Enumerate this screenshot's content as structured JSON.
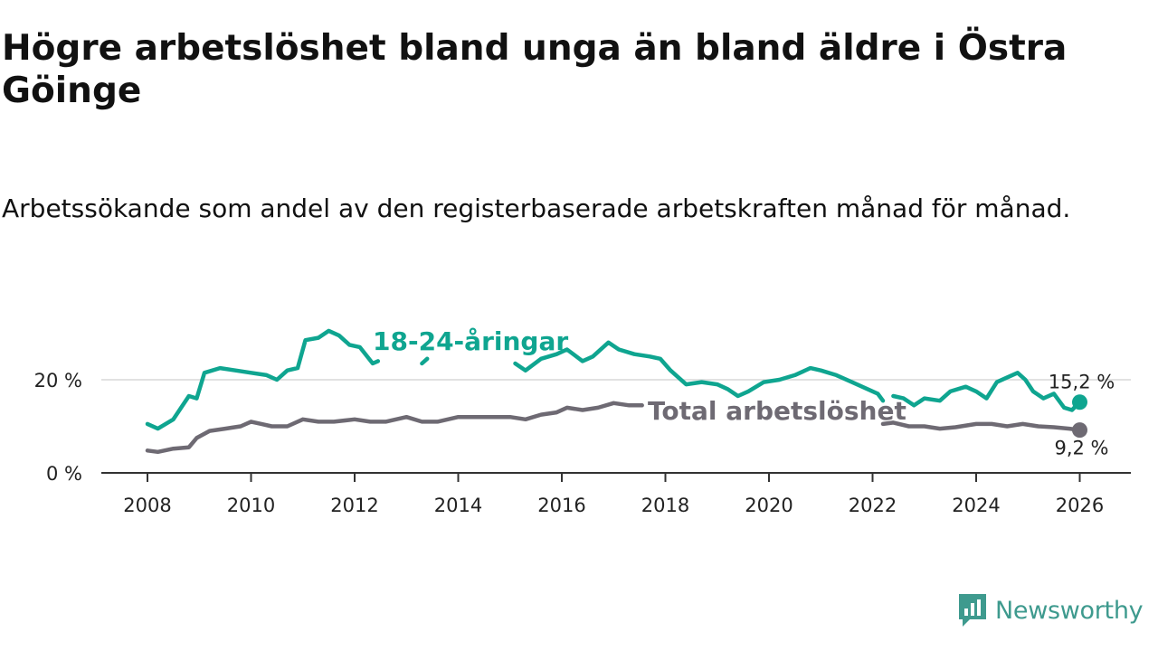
{
  "header": {
    "title": "Högre arbetslöshet bland unga än bland äldre i Östra Göinge",
    "subtitle": "Arbetssökande som andel av den registerbaserade arbetskraften månad för månad."
  },
  "branding": {
    "name": "Newsworthy",
    "color": "#3e9a8e"
  },
  "chart_data": {
    "type": "line",
    "title": "Högre arbetslöshet bland unga än bland äldre i Östra Göinge",
    "subtitle": "Arbetssökande som andel av den registerbaserade arbetskraften månad för månad.",
    "xlabel": "",
    "ylabel": "",
    "xlim": [
      2007.5,
      2027.0
    ],
    "ylim": [
      0,
      30
    ],
    "xticks": [
      2008,
      2010,
      2012,
      2014,
      2016,
      2018,
      2020,
      2022,
      2024,
      2026
    ],
    "yticks": [
      0,
      20
    ],
    "ytick_labels": [
      "0 %",
      "20 %"
    ],
    "grid": true,
    "series": [
      {
        "name": "18-24-åringar",
        "label": "18-24-åringar",
        "color": "#0fa590",
        "end_label": "15,2 %",
        "points": [
          [
            2008.0,
            10.5
          ],
          [
            2008.2,
            9.5
          ],
          [
            2008.5,
            11.5
          ],
          [
            2008.8,
            16.5
          ],
          [
            2008.95,
            16.0
          ],
          [
            2009.1,
            21.5
          ],
          [
            2009.4,
            22.5
          ],
          [
            2009.7,
            22.0
          ],
          [
            2010.0,
            21.5
          ],
          [
            2010.3,
            21.0
          ],
          [
            2010.5,
            20.0
          ],
          [
            2010.7,
            22.0
          ],
          [
            2010.9,
            22.5
          ],
          [
            2011.05,
            28.5
          ],
          [
            2011.3,
            29.0
          ],
          [
            2011.5,
            30.5
          ],
          [
            2011.7,
            29.5
          ],
          [
            2011.9,
            27.5
          ],
          [
            2012.1,
            27.0
          ],
          [
            2012.35,
            23.5
          ],
          [
            2012.45,
            24.0
          ],
          null,
          [
            2013.3,
            23.5
          ],
          [
            2013.4,
            24.5
          ],
          null,
          [
            2015.1,
            23.5
          ],
          [
            2015.3,
            22.0
          ],
          [
            2015.6,
            24.5
          ],
          [
            2015.9,
            25.5
          ],
          [
            2016.1,
            26.5
          ],
          [
            2016.4,
            24.0
          ],
          [
            2016.6,
            25.0
          ],
          [
            2016.9,
            28.0
          ],
          [
            2017.1,
            26.5
          ],
          [
            2017.4,
            25.5
          ],
          [
            2017.7,
            25.0
          ],
          [
            2017.9,
            24.5
          ],
          [
            2018.1,
            22.0
          ],
          [
            2018.4,
            19.0
          ],
          [
            2018.7,
            19.5
          ],
          [
            2019.0,
            19.0
          ],
          [
            2019.2,
            18.0
          ],
          [
            2019.4,
            16.5
          ],
          [
            2019.6,
            17.5
          ],
          [
            2019.9,
            19.5
          ],
          [
            2020.2,
            20.0
          ],
          [
            2020.5,
            21.0
          ],
          [
            2020.8,
            22.5
          ],
          [
            2021.0,
            22.0
          ],
          [
            2021.3,
            21.0
          ],
          [
            2021.6,
            19.5
          ],
          [
            2021.9,
            18.0
          ],
          [
            2022.1,
            17.0
          ],
          [
            2022.2,
            15.5
          ],
          null,
          [
            2022.4,
            16.5
          ],
          [
            2022.6,
            16.0
          ],
          [
            2022.8,
            14.5
          ],
          [
            2023.0,
            16.0
          ],
          [
            2023.3,
            15.5
          ],
          [
            2023.5,
            17.5
          ],
          [
            2023.8,
            18.5
          ],
          [
            2024.0,
            17.5
          ],
          [
            2024.2,
            16.0
          ],
          [
            2024.4,
            19.5
          ],
          [
            2024.6,
            20.5
          ],
          [
            2024.8,
            21.5
          ],
          [
            2024.95,
            20.0
          ],
          [
            2025.1,
            17.5
          ],
          [
            2025.3,
            16.0
          ],
          [
            2025.5,
            17.0
          ],
          [
            2025.7,
            14.0
          ],
          [
            2025.85,
            13.5
          ],
          [
            2026.0,
            15.2
          ]
        ]
      },
      {
        "name": "Total arbetslöshet",
        "label": "Total arbetslöshet",
        "color": "#6e6a73",
        "end_label": "9,2 %",
        "points": [
          [
            2008.0,
            4.8
          ],
          [
            2008.2,
            4.5
          ],
          [
            2008.5,
            5.2
          ],
          [
            2008.8,
            5.5
          ],
          [
            2008.95,
            7.5
          ],
          [
            2009.2,
            9.0
          ],
          [
            2009.5,
            9.5
          ],
          [
            2009.8,
            10.0
          ],
          [
            2010.0,
            11.0
          ],
          [
            2010.2,
            10.5
          ],
          [
            2010.4,
            10.0
          ],
          [
            2010.7,
            10.0
          ],
          [
            2011.0,
            11.5
          ],
          [
            2011.3,
            11.0
          ],
          [
            2011.6,
            11.0
          ],
          [
            2012.0,
            11.5
          ],
          [
            2012.3,
            11.0
          ],
          [
            2012.6,
            11.0
          ],
          [
            2013.0,
            12.0
          ],
          [
            2013.3,
            11.0
          ],
          [
            2013.6,
            11.0
          ],
          [
            2014.0,
            12.0
          ],
          [
            2014.3,
            12.0
          ],
          [
            2014.6,
            12.0
          ],
          [
            2015.0,
            12.0
          ],
          [
            2015.3,
            11.5
          ],
          [
            2015.6,
            12.5
          ],
          [
            2015.9,
            13.0
          ],
          [
            2016.1,
            14.0
          ],
          [
            2016.4,
            13.5
          ],
          [
            2016.7,
            14.0
          ],
          [
            2017.0,
            15.0
          ],
          [
            2017.3,
            14.5
          ],
          [
            2017.55,
            14.5
          ],
          null,
          [
            2022.2,
            10.5
          ],
          [
            2022.4,
            10.8
          ],
          [
            2022.7,
            10.0
          ],
          [
            2023.0,
            10.0
          ],
          [
            2023.3,
            9.5
          ],
          [
            2023.6,
            9.8
          ],
          [
            2024.0,
            10.5
          ],
          [
            2024.3,
            10.5
          ],
          [
            2024.6,
            10.0
          ],
          [
            2024.9,
            10.5
          ],
          [
            2025.2,
            10.0
          ],
          [
            2025.5,
            9.8
          ],
          [
            2025.8,
            9.5
          ],
          [
            2026.0,
            9.2
          ]
        ]
      }
    ]
  }
}
